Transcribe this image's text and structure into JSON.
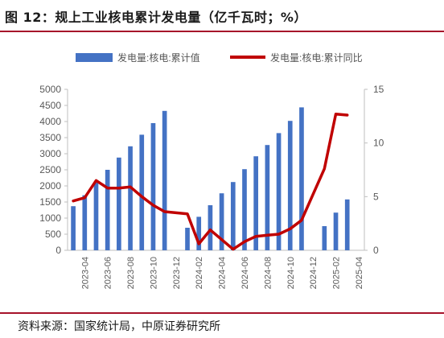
{
  "figure": {
    "title": "图 12：规上工业核电累计发电量（亿千瓦时；%）",
    "source": "资料来源：国家统计局，中原证券研究所"
  },
  "colors": {
    "bar": "#4472c4",
    "line": "#c00000",
    "accent_rule": "#a6122a"
  },
  "chart_data": {
    "type": "bar",
    "categories": [
      "2023-03",
      "2023-04",
      "2023-05",
      "2023-06",
      "2023-07",
      "2023-08",
      "2023-09",
      "2023-10",
      "2023-11",
      "2023-12",
      "2024-01",
      "2024-02",
      "2024-03",
      "2024-04",
      "2024-05",
      "2024-06",
      "2024-07",
      "2024-08",
      "2024-09",
      "2024-10",
      "2024-11",
      "2024-12",
      "2025-01",
      "2025-02",
      "2025-03",
      "2025-04"
    ],
    "x_tick_labels": [
      "2023-04",
      "2023-06",
      "2023-08",
      "2023-10",
      "2023-12",
      "2024-02",
      "2024-04",
      "2024-06",
      "2024-08",
      "2024-10",
      "2024-12",
      "2025-02",
      "2025-04"
    ],
    "series": [
      {
        "name": "发电量:核电:累计值",
        "type": "bar",
        "axis": "left",
        "values": [
          1370,
          1710,
          2100,
          2500,
          2880,
          3230,
          3590,
          3950,
          4330,
          null,
          700,
          1040,
          1400,
          1770,
          2120,
          2520,
          2920,
          3270,
          3640,
          4020,
          4440,
          null,
          750,
          1170,
          1580,
          null
        ]
      },
      {
        "name": "发电量:核电:累计同比",
        "type": "line",
        "axis": "right",
        "values": [
          4.6,
          4.9,
          6.5,
          5.8,
          5.8,
          5.9,
          5.0,
          4.2,
          3.6,
          null,
          3.4,
          0.6,
          1.9,
          1.0,
          0.1,
          0.8,
          1.3,
          1.4,
          1.5,
          2.0,
          2.8,
          null,
          7.6,
          12.7,
          12.6,
          null
        ]
      }
    ],
    "y_left": {
      "ylim": [
        0,
        5000
      ],
      "ticks": [
        "0",
        "500",
        "1000",
        "1500",
        "2000",
        "2500",
        "3000",
        "3500",
        "4000",
        "4500",
        "5000"
      ]
    },
    "y_right": {
      "ylim": [
        0,
        15
      ],
      "ticks": [
        "0",
        "5",
        "10",
        "15"
      ]
    },
    "legend": {
      "placement": "top"
    },
    "grid": false
  }
}
